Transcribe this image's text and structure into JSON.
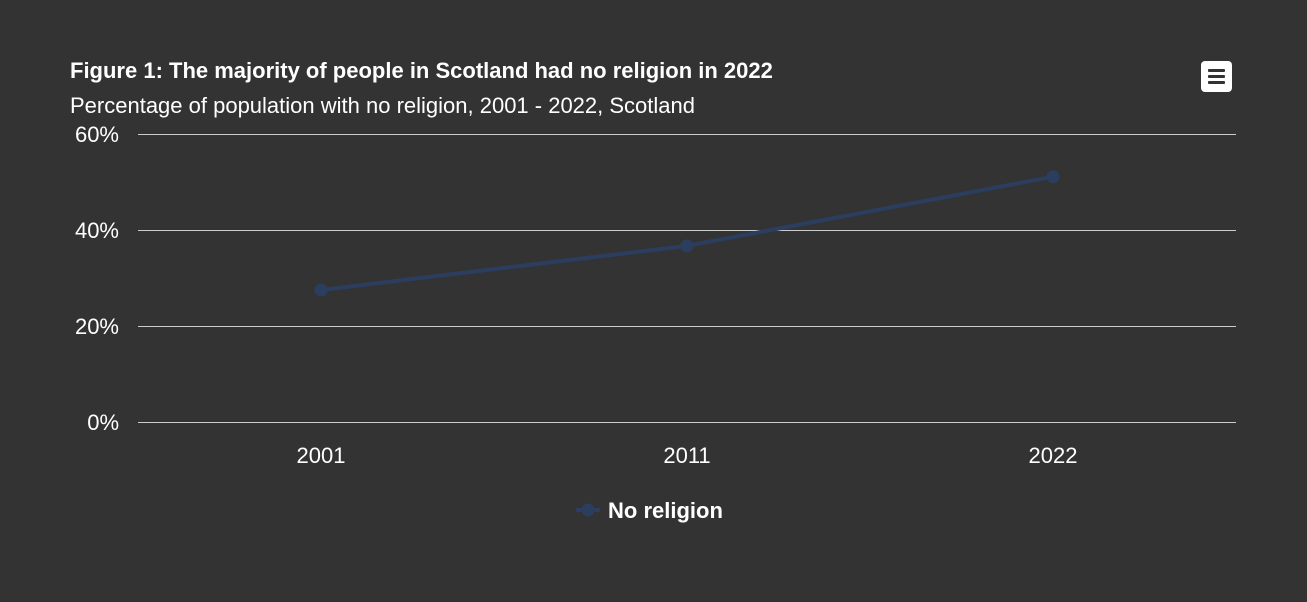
{
  "chart_data": {
    "type": "line",
    "title": "Figure 1: The majority of people in Scotland had no religion in 2022",
    "subtitle": "Percentage of population with no religion, 2001 - 2022, Scotland",
    "categories": [
      "2001",
      "2011",
      "2022"
    ],
    "series": [
      {
        "name": "No religion",
        "values": [
          27.5,
          36.7,
          51.1
        ],
        "color": "#2b3e5f"
      }
    ],
    "y_ticks": [
      "0%",
      "20%",
      "40%",
      "60%"
    ],
    "y_tick_values": [
      0,
      20,
      40,
      60
    ],
    "ylim": [
      0,
      60
    ],
    "xlabel": "",
    "ylabel": "",
    "grid": true,
    "legend_position": "bottom-center"
  },
  "colors": {
    "background": "#333333",
    "text": "#ffffff",
    "gridline": "#cccccc",
    "series": "#2b3e5f"
  },
  "menu": {
    "icon": "hamburger-menu-icon"
  }
}
